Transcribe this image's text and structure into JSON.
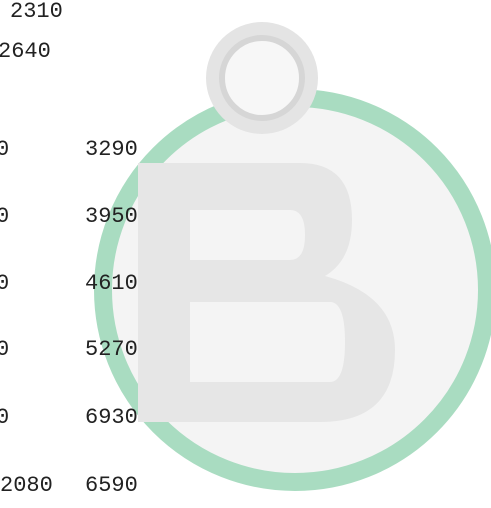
{
  "lines": [
    [
      "2310"
    ],
    [
      "2640"
    ],
    [
      "0",
      "3290"
    ],
    [
      "0",
      "3950"
    ],
    [
      "0",
      "4610"
    ],
    [
      "0",
      "5270"
    ],
    [
      "0",
      "6930"
    ],
    [
      "2080",
      "6590"
    ]
  ]
}
